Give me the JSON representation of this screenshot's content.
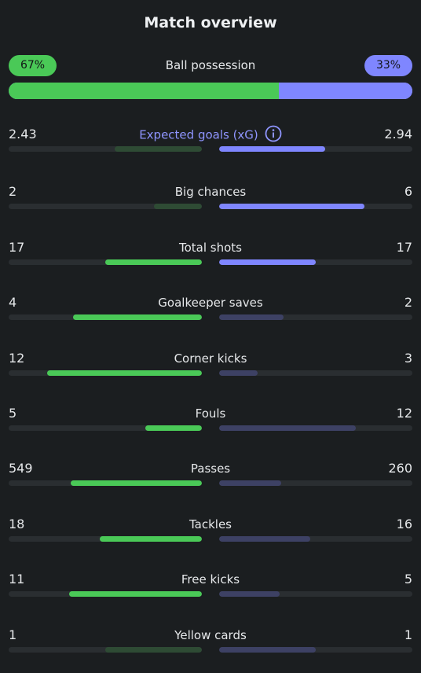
{
  "title": "Match overview",
  "possession": {
    "label": "Ball possession",
    "home_text": "67%",
    "away_text": "33%",
    "home_value": 67,
    "away_value": 33
  },
  "stats": [
    {
      "label": "Expected goals (xG)",
      "home": "2.43",
      "away": "2.94",
      "home_frac": 0.45,
      "away_frac": 0.55,
      "home_leads": false,
      "away_leads": true,
      "accent": true,
      "info": true
    },
    {
      "label": "Big chances",
      "home": "2",
      "away": "6",
      "home_frac": 0.25,
      "away_frac": 0.75,
      "home_leads": false,
      "away_leads": true
    },
    {
      "label": "Total shots",
      "home": "17",
      "away": "17",
      "home_frac": 0.5,
      "away_frac": 0.5,
      "home_leads": true,
      "away_leads": true
    },
    {
      "label": "Goalkeeper saves",
      "home": "4",
      "away": "2",
      "home_frac": 0.667,
      "away_frac": 0.333,
      "home_leads": true,
      "away_leads": false
    },
    {
      "label": "Corner kicks",
      "home": "12",
      "away": "3",
      "home_frac": 0.8,
      "away_frac": 0.2,
      "home_leads": true,
      "away_leads": false
    },
    {
      "label": "Fouls",
      "home": "5",
      "away": "12",
      "home_frac": 0.294,
      "away_frac": 0.706,
      "home_leads": true,
      "away_leads": false
    },
    {
      "label": "Passes",
      "home": "549",
      "away": "260",
      "home_frac": 0.679,
      "away_frac": 0.321,
      "home_leads": true,
      "away_leads": false
    },
    {
      "label": "Tackles",
      "home": "18",
      "away": "16",
      "home_frac": 0.529,
      "away_frac": 0.471,
      "home_leads": true,
      "away_leads": false
    },
    {
      "label": "Free kicks",
      "home": "11",
      "away": "5",
      "home_frac": 0.6875,
      "away_frac": 0.3125,
      "home_leads": true,
      "away_leads": false
    },
    {
      "label": "Yellow cards",
      "home": "1",
      "away": "1",
      "home_frac": 0.5,
      "away_frac": 0.5,
      "home_leads": false,
      "away_leads": false
    }
  ],
  "colors": {
    "home": "#4ac957",
    "away": "#7f86ff",
    "accent": "#8f95ff",
    "background": "#1b1e20"
  },
  "icons": {
    "info": "info-icon"
  }
}
